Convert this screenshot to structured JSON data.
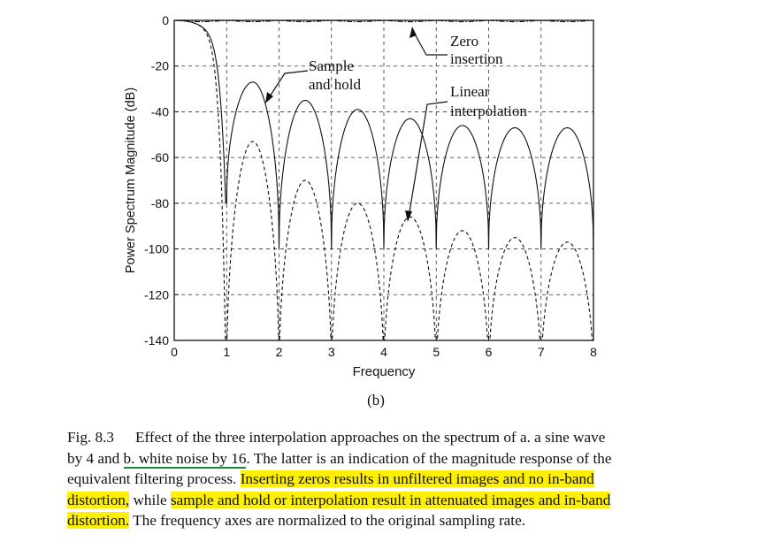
{
  "panel_label": "(b)",
  "chart_data": {
    "type": "line",
    "xlabel": "Frequency",
    "ylabel": "Power Spectrum Magnitude (dB)",
    "xlim": [
      0,
      8
    ],
    "ylim": [
      -140,
      0
    ],
    "xticks": [
      0,
      1,
      2,
      3,
      4,
      5,
      6,
      7,
      8
    ],
    "yticks": [
      0,
      -20,
      -40,
      -60,
      -80,
      -100,
      -120,
      -140
    ],
    "grid": true,
    "series": [
      {
        "name": "Zero insertion",
        "style": "dash-dot",
        "peaks_db": [
          0,
          0,
          0,
          0,
          0,
          0,
          0,
          0
        ]
      },
      {
        "name": "Sample and hold",
        "style": "solid",
        "peaks_db": [
          0,
          -27,
          -35,
          -39,
          -43,
          -46,
          -47,
          -47
        ],
        "nulls_db": [
          -80,
          -100,
          -100,
          -100,
          -100,
          -100,
          -100
        ]
      },
      {
        "name": "Linear interpolation",
        "style": "dashed",
        "peaks_db": [
          0,
          -53,
          -70,
          -80,
          -86,
          -92,
          -95,
          -97
        ]
      }
    ],
    "annotations": [
      {
        "lines": [
          "Zero",
          "insertion"
        ]
      },
      {
        "lines": [
          "Sample",
          "and hold"
        ]
      },
      {
        "lines": [
          "Linear",
          "interpolation"
        ]
      }
    ]
  },
  "caption": {
    "label": "Fig. 8.3",
    "line1": "Effect of the three interpolation approaches on the spectrum of a. a sine wave",
    "line2_a": "by 4 and ",
    "line2_ul": "b. white noise by 16",
    "line2_b": ". The latter is an indication of the magnitude response of the",
    "line3_a": "equivalent filtering process. ",
    "line3_hl": "Inserting zeros results in unfiltered images and no in-band",
    "line4_hl1": "distortion,",
    "line4_mid": " while ",
    "line4_hl2": "sample and hold or interpolation result in attenuated images and in-band",
    "line5_hl": "distortion.",
    "line5_rest": " The frequency axes are normalized to the original sampling rate."
  }
}
